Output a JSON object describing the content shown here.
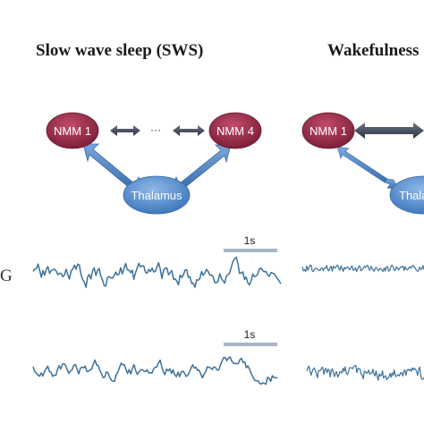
{
  "panels": {
    "sws_title": "Slow wave sleep (SWS)",
    "wake_title": "Wakefulness"
  },
  "nodes": {
    "nmm1": "NMM 1",
    "nmm4": "NMM 4",
    "ellipsis": "···",
    "thalamus": "Thalamus",
    "nmm1_wake": "NMM 1",
    "thalamus_wake": "Thala"
  },
  "traces": {
    "scale_label": "1s",
    "row_label": "G"
  },
  "colors": {
    "nmm_node": "#9e2d4a",
    "thalamus_node": "#5a8fcc",
    "trace": "#3d7199",
    "scale_bar": "#a9b5c7"
  }
}
